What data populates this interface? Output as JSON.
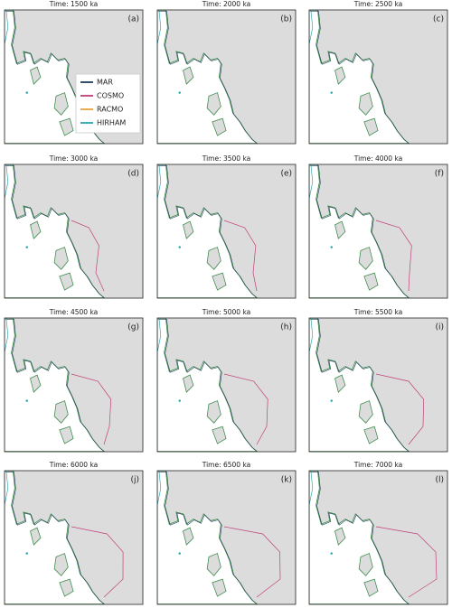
{
  "panels": [
    {
      "title": "Time: 1500 ka",
      "label": "(a)"
    },
    {
      "title": "Time: 2000 ka",
      "label": "(b)"
    },
    {
      "title": "Time: 2500 ka",
      "label": "(c)"
    },
    {
      "title": "Time: 3000 ka",
      "label": "(d)"
    },
    {
      "title": "Time: 3500 ka",
      "label": "(e)"
    },
    {
      "title": "Time: 4000 ka",
      "label": "(f)"
    },
    {
      "title": "Time: 4500 ka",
      "label": "(g)"
    },
    {
      "title": "Time: 5000 ka",
      "label": "(h)"
    },
    {
      "title": "Time: 5500 ka",
      "label": "(i)"
    },
    {
      "title": "Time: 6000 ka",
      "label": "(j)"
    },
    {
      "title": "Time: 6500 ka",
      "label": "(k)"
    },
    {
      "title": "Time: 7000 ka",
      "label": "(l)"
    }
  ],
  "legend": [
    "MAR",
    "COSMO",
    "RACMO",
    "HIRHAM"
  ]
}
